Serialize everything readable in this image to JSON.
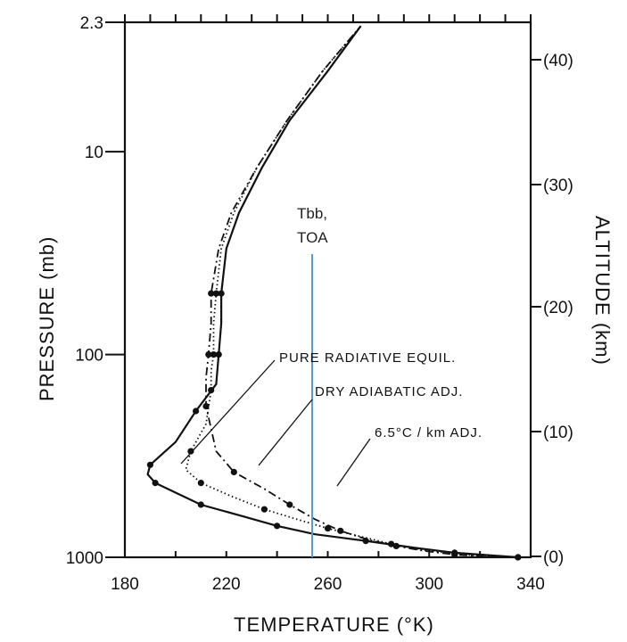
{
  "chart_data": {
    "type": "line",
    "xlabel": "TEMPERATURE (°K)",
    "ylabel": "PRESSURE (mb)",
    "y2label": "ALTITUDE (km)",
    "xlim": [
      180,
      340
    ],
    "ylim_pressure": [
      1000,
      2.3
    ],
    "y_scale": "log",
    "x_ticks": [
      "180",
      "220",
      "260",
      "300",
      "340"
    ],
    "y_ticks": [
      "2.3",
      "10",
      "100",
      "1000"
    ],
    "y2_ticks": [
      "(40)",
      "(30)",
      "(20)",
      "(10)",
      "(0)"
    ],
    "series": [
      {
        "style": "solid",
        "x": [
          335,
          325,
          310,
          295,
          275,
          255,
          240,
          225,
          210,
          200,
          192,
          189,
          190,
          200,
          208,
          216,
          217,
          218,
          218,
          220,
          225,
          234,
          245,
          260,
          273
        ],
        "y": [
          1000,
          980,
          950,
          900,
          830,
          770,
          700,
          620,
          550,
          480,
          430,
          390,
          350,
          270,
          190,
          140,
          100,
          70,
          50,
          30,
          20,
          12,
          7,
          4,
          2.4
        ]
      },
      {
        "style": "dotted",
        "x": [
          335,
          322,
          310,
          297,
          285,
          273,
          260,
          248,
          235,
          222,
          210,
          204,
          206,
          212,
          214,
          214,
          215,
          215,
          216,
          218,
          223,
          232,
          244,
          258,
          273
        ],
        "y": [
          1000,
          990,
          960,
          920,
          860,
          790,
          720,
          650,
          580,
          500,
          430,
          370,
          300,
          220,
          150,
          120,
          100,
          70,
          50,
          30,
          20,
          12,
          7,
          4,
          2.4
        ]
      },
      {
        "style": "dash-dot",
        "x": [
          335,
          322,
          310,
          298,
          287,
          276,
          265,
          255,
          245,
          235,
          223,
          216,
          212,
          212,
          213,
          214,
          214,
          217,
          222,
          232,
          244,
          258,
          273
        ],
        "y": [
          1000,
          990,
          970,
          930,
          880,
          820,
          740,
          650,
          550,
          460,
          380,
          300,
          180,
          130,
          100,
          70,
          50,
          30,
          20,
          12,
          7,
          4,
          2.4
        ]
      }
    ],
    "vertical_line": {
      "x": 256,
      "label_line1": "Tbb,",
      "label_line2": "TOA",
      "color": "#5b9bd5"
    },
    "annotations": [
      "PURE RADIATIVE EQUIL.",
      "DRY ADIABATIC ADJ.",
      "6.5°C / km ADJ."
    ]
  }
}
